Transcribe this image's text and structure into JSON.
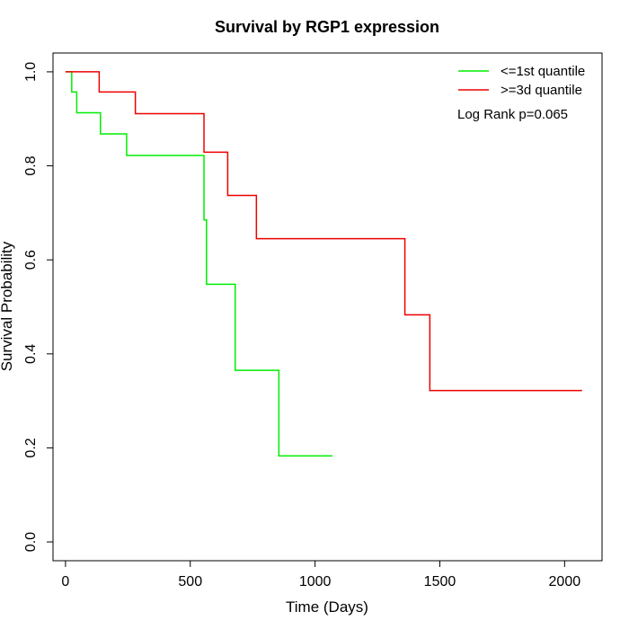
{
  "chart_data": {
    "type": "line",
    "title": "Survival by RGP1 expression",
    "xlabel": "Time (Days)",
    "ylabel": "Survival Probability",
    "xlim": [
      -50,
      2150
    ],
    "ylim": [
      -0.04,
      1.04
    ],
    "xticks": [
      0,
      500,
      1000,
      1500,
      2000
    ],
    "yticks": [
      0.0,
      0.2,
      0.4,
      0.6,
      0.8,
      1.0
    ],
    "xtick_labels": [
      "0",
      "500",
      "1000",
      "1500",
      "2000"
    ],
    "ytick_labels": [
      "0.0",
      "0.2",
      "0.4",
      "0.6",
      "0.8",
      "1.0"
    ],
    "grid": false,
    "legend_position": "top-right",
    "annotation": "Log Rank p=0.065",
    "series": [
      {
        "name": "<=1st quantile",
        "color": "#00ee00",
        "step": true,
        "x": [
          0,
          25,
          45,
          140,
          245,
          555,
          565,
          680,
          855,
          1070
        ],
        "y": [
          1.0,
          0.957,
          0.913,
          0.868,
          0.822,
          0.685,
          0.548,
          0.365,
          0.183,
          0.183
        ]
      },
      {
        "name": ">=3d quantile",
        "color": "#ee0000",
        "step": true,
        "x": [
          0,
          135,
          280,
          555,
          650,
          765,
          1360,
          1460,
          2070
        ],
        "y": [
          1.0,
          0.957,
          0.911,
          0.829,
          0.737,
          0.645,
          0.483,
          0.322,
          0.322
        ]
      }
    ]
  }
}
